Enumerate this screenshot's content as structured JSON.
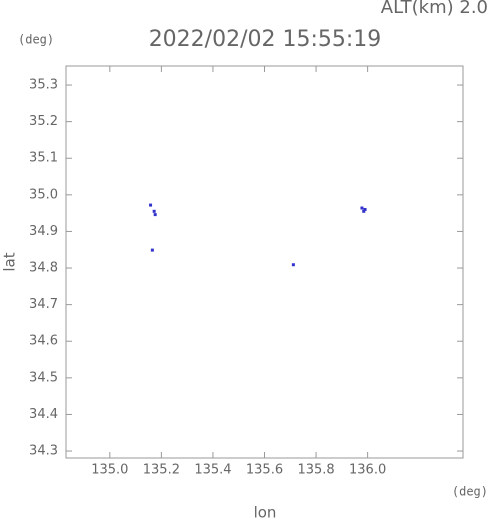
{
  "chart_data": {
    "type": "scatter",
    "title": "2022/02/02 15:55:19",
    "annotation": "ALT(km) 2.0",
    "x_unit": "(deg)",
    "y_unit": "(deg)",
    "xlabel": "lon",
    "ylabel": "lat",
    "x": [
      135.158,
      135.172,
      135.176,
      135.165,
      135.712,
      135.978,
      135.985,
      135.99
    ],
    "y": [
      34.972,
      34.955,
      34.946,
      34.849,
      34.809,
      34.964,
      34.955,
      34.96
    ],
    "color": "#3333cc",
    "xlim": [
      134.83,
      136.37
    ],
    "ylim": [
      34.281,
      35.352
    ],
    "xticks": [
      {
        "value": 135.0,
        "label": "135.0"
      },
      135.2,
      135.4,
      135.6,
      135.8,
      {
        "value": 136.0,
        "label": "136.0"
      }
    ],
    "yticks": [
      34.3,
      34.4,
      34.5,
      34.6,
      34.7,
      34.8,
      34.9,
      {
        "value": 35.0,
        "label": "35.0"
      },
      35.1,
      35.2,
      35.3
    ]
  }
}
